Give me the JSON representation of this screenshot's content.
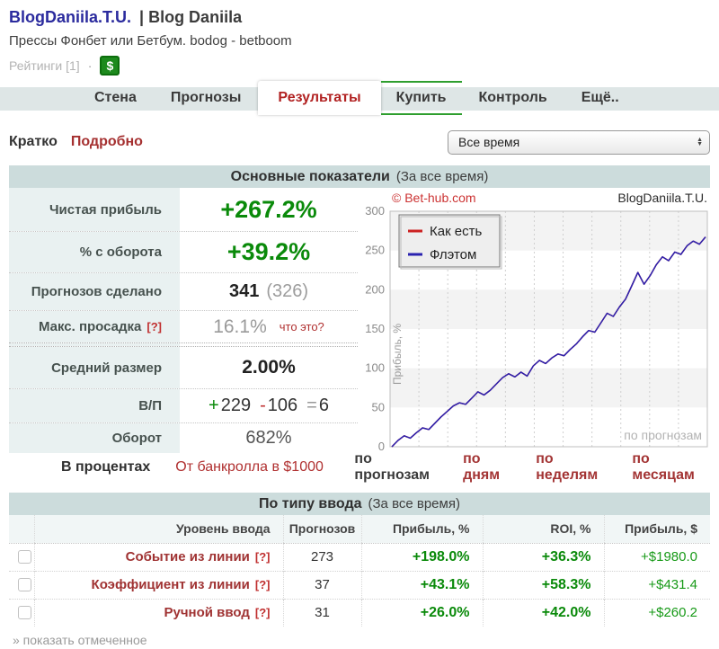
{
  "header": {
    "title": "BlogDaniila.T.U.",
    "title_suffix": "| Blog Daniila",
    "subtitle": "Прессы Фонбет или Бетбум. bodog - betboom",
    "ratings_label": "Рейтинги [1]",
    "dot": "·",
    "dollar_badge": "$"
  },
  "tabs": {
    "items": [
      {
        "label": "Стена"
      },
      {
        "label": "Прогнозы"
      },
      {
        "label": "Результаты"
      },
      {
        "label": "Купить"
      },
      {
        "label": "Контроль"
      },
      {
        "label": "Ещё.."
      }
    ],
    "active": "Результаты"
  },
  "controls": {
    "brief": "Кратко",
    "detailed": "Подробно",
    "period_selected": "Все время"
  },
  "main_section": {
    "title": "Основные показатели",
    "period": "(За все время)",
    "rows": {
      "net_profit": {
        "label": "Чистая прибыль",
        "value": "+267.2%"
      },
      "turnover_pct": {
        "label": "% с оборота",
        "value": "+39.2%"
      },
      "predictions": {
        "label": "Прогнозов сделано",
        "value": "341",
        "secondary": "(326)"
      },
      "drawdown": {
        "label": "Макс. просадка",
        "help": "[?]",
        "value": "16.1%",
        "note": "что это?"
      },
      "avg_size": {
        "label": "Средний размер",
        "value": "2.00%"
      },
      "wl": {
        "label": "В/П",
        "win_sign": "+",
        "wins": "229",
        "loss_sign": "-",
        "losses": "106",
        "eq_sign": "=",
        "draws": "6"
      },
      "turnover": {
        "label": "Оборот",
        "value": "682%"
      }
    },
    "footer": {
      "mode_label": "В процентах",
      "bankroll_link": "От банкролла в $1000"
    }
  },
  "chart_links": {
    "by_predictions": "по прогнозам",
    "by_days": "по дням",
    "by_weeks": "по неделям",
    "by_months": "по месяцам"
  },
  "chart_data": {
    "type": "line",
    "copyright": "© Bet-hub.com",
    "owner_label": "BlogDaniila.T.U.",
    "inner_watermark": "по прогнозам",
    "ylabel": "Прибыль, %",
    "ylim": [
      0,
      300
    ],
    "yticks": [
      0,
      50,
      100,
      150,
      200,
      250,
      300
    ],
    "grid": true,
    "legend_position": "top-left",
    "x_axis_note": "bet index (по прогнозам), unlabeled",
    "series": [
      {
        "name": "Как есть",
        "color": "#cc2222",
        "values": [
          0,
          8,
          14,
          11,
          18,
          24,
          22,
          30,
          38,
          45,
          52,
          56,
          54,
          62,
          70,
          66,
          72,
          80,
          88,
          93,
          89,
          95,
          90,
          103,
          110,
          106,
          113,
          118,
          116,
          124,
          131,
          140,
          148,
          146,
          158,
          170,
          166,
          178,
          188,
          205,
          222,
          207,
          218,
          232,
          242,
          237,
          248,
          245,
          256,
          262,
          258,
          267.2
        ]
      },
      {
        "name": "Флэтом",
        "color": "#2a22b0",
        "values": [
          0,
          8,
          14,
          11,
          18,
          24,
          22,
          30,
          38,
          45,
          52,
          56,
          54,
          62,
          70,
          66,
          72,
          80,
          88,
          93,
          89,
          95,
          90,
          103,
          110,
          106,
          113,
          118,
          116,
          124,
          131,
          140,
          148,
          146,
          158,
          170,
          166,
          178,
          188,
          205,
          222,
          207,
          218,
          232,
          242,
          237,
          248,
          245,
          256,
          262,
          258,
          267.2
        ]
      }
    ]
  },
  "type_section": {
    "title": "По типу ввода",
    "period": "(За все время)",
    "columns": [
      "Уровень ввода",
      "Прогнозов",
      "Прибыль, %",
      "ROI, %",
      "Прибыль, $"
    ],
    "rows": [
      {
        "level": "Событие из линии",
        "help": "[?]",
        "count": "273",
        "profit_pct": "+198.0%",
        "roi": "+36.3%",
        "profit_usd": "+$1980.0"
      },
      {
        "level": "Коэффициент из линии",
        "help": "[?]",
        "count": "37",
        "profit_pct": "+43.1%",
        "roi": "+58.3%",
        "profit_usd": "+$431.4"
      },
      {
        "level": "Ручной ввод",
        "help": "[?]",
        "count": "31",
        "profit_pct": "+26.0%",
        "roi": "+42.0%",
        "profit_usd": "+$260.2"
      }
    ],
    "footer_link": "» показать отмеченное"
  },
  "colors": {
    "green_value": "#0a8a0a",
    "red_link": "#a33434",
    "navy_title": "#2b2b9e",
    "section_band": "#ccdcdc",
    "label_bg": "#e9f1f1",
    "tabbar_bg": "#dee6e6",
    "buy_tab_green": "#2e9e2e",
    "line_blue": "#2a22b0",
    "line_red": "#cc2222"
  }
}
